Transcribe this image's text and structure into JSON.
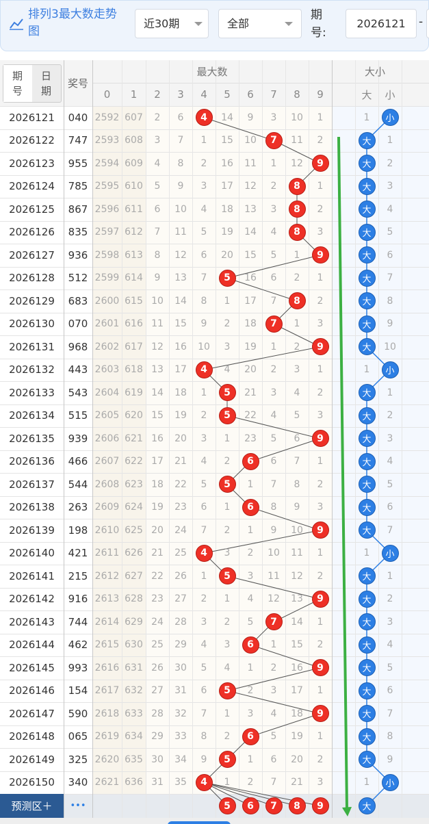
{
  "header": {
    "title": "排列3最大数走势图",
    "period_filter": "近30期",
    "type_filter": "全部",
    "issue_label": "期号:",
    "issue_from": "2026121",
    "separator": "-"
  },
  "table_header": {
    "mode_options": [
      "期号",
      "日期"
    ],
    "number": "奖号",
    "max_group": "最大数",
    "digits": [
      0,
      1,
      2,
      3,
      4,
      5,
      6,
      7,
      8,
      9
    ],
    "size_group": "大小",
    "size_cols": [
      "大",
      "小"
    ]
  },
  "rows": [
    {
      "issue": "2026121",
      "number": "040",
      "cells": [
        2592,
        607,
        2,
        6,
        4,
        14,
        9,
        3,
        10,
        1
      ],
      "size": [
        1,
        "小"
      ]
    },
    {
      "issue": "2026122",
      "number": "747",
      "cells": [
        2593,
        608,
        3,
        7,
        1,
        15,
        10,
        7,
        11,
        2
      ],
      "size": [
        "大",
        1
      ]
    },
    {
      "issue": "2026123",
      "number": "955",
      "cells": [
        2594,
        609,
        4,
        8,
        2,
        16,
        11,
        1,
        12,
        9
      ],
      "size": [
        "大",
        2
      ]
    },
    {
      "issue": "2026124",
      "number": "785",
      "cells": [
        2595,
        610,
        5,
        9,
        3,
        17,
        12,
        2,
        8,
        1
      ],
      "size": [
        "大",
        3
      ]
    },
    {
      "issue": "2026125",
      "number": "867",
      "cells": [
        2596,
        611,
        6,
        10,
        4,
        18,
        13,
        3,
        8,
        2
      ],
      "size": [
        "大",
        4
      ]
    },
    {
      "issue": "2026126",
      "number": "835",
      "cells": [
        2597,
        612,
        7,
        11,
        5,
        19,
        14,
        4,
        8,
        3
      ],
      "size": [
        "大",
        5
      ]
    },
    {
      "issue": "2026127",
      "number": "936",
      "cells": [
        2598,
        613,
        8,
        12,
        6,
        20,
        15,
        5,
        1,
        9
      ],
      "size": [
        "大",
        6
      ]
    },
    {
      "issue": "2026128",
      "number": "512",
      "cells": [
        2599,
        614,
        9,
        13,
        7,
        5,
        16,
        6,
        2,
        1
      ],
      "size": [
        "大",
        7
      ]
    },
    {
      "issue": "2026129",
      "number": "683",
      "cells": [
        2600,
        615,
        10,
        14,
        8,
        1,
        17,
        7,
        8,
        2
      ],
      "size": [
        "大",
        8
      ]
    },
    {
      "issue": "2026130",
      "number": "070",
      "cells": [
        2601,
        616,
        11,
        15,
        9,
        2,
        18,
        7,
        1,
        3
      ],
      "size": [
        "大",
        9
      ]
    },
    {
      "issue": "2026131",
      "number": "968",
      "cells": [
        2602,
        617,
        12,
        16,
        10,
        3,
        19,
        1,
        2,
        9
      ],
      "size": [
        "大",
        10
      ]
    },
    {
      "issue": "2026132",
      "number": "443",
      "cells": [
        2603,
        618,
        13,
        17,
        4,
        4,
        20,
        2,
        3,
        1
      ],
      "size": [
        1,
        "小"
      ]
    },
    {
      "issue": "2026133",
      "number": "543",
      "cells": [
        2604,
        619,
        14,
        18,
        1,
        5,
        21,
        3,
        4,
        2
      ],
      "size": [
        "大",
        1
      ]
    },
    {
      "issue": "2026134",
      "number": "515",
      "cells": [
        2605,
        620,
        15,
        19,
        2,
        5,
        22,
        4,
        5,
        3
      ],
      "size": [
        "大",
        2
      ]
    },
    {
      "issue": "2026135",
      "number": "939",
      "cells": [
        2606,
        621,
        16,
        20,
        3,
        1,
        23,
        5,
        6,
        9
      ],
      "size": [
        "大",
        3
      ]
    },
    {
      "issue": "2026136",
      "number": "466",
      "cells": [
        2607,
        622,
        17,
        21,
        4,
        2,
        6,
        6,
        7,
        1
      ],
      "size": [
        "大",
        4
      ]
    },
    {
      "issue": "2026137",
      "number": "544",
      "cells": [
        2608,
        623,
        18,
        22,
        5,
        5,
        1,
        7,
        8,
        2
      ],
      "size": [
        "大",
        5
      ]
    },
    {
      "issue": "2026138",
      "number": "263",
      "cells": [
        2609,
        624,
        19,
        23,
        6,
        1,
        6,
        8,
        9,
        3
      ],
      "size": [
        "大",
        6
      ]
    },
    {
      "issue": "2026139",
      "number": "198",
      "cells": [
        2610,
        625,
        20,
        24,
        7,
        2,
        1,
        9,
        10,
        9
      ],
      "size": [
        "大",
        7
      ]
    },
    {
      "issue": "2026140",
      "number": "421",
      "cells": [
        2611,
        626,
        21,
        25,
        4,
        3,
        2,
        10,
        11,
        1
      ],
      "size": [
        1,
        "小"
      ]
    },
    {
      "issue": "2026141",
      "number": "215",
      "cells": [
        2612,
        627,
        22,
        26,
        1,
        5,
        3,
        11,
        12,
        2
      ],
      "size": [
        "大",
        1
      ]
    },
    {
      "issue": "2026142",
      "number": "916",
      "cells": [
        2613,
        628,
        23,
        27,
        2,
        1,
        4,
        12,
        13,
        9
      ],
      "size": [
        "大",
        2
      ]
    },
    {
      "issue": "2026143",
      "number": "744",
      "cells": [
        2614,
        629,
        24,
        28,
        3,
        2,
        5,
        7,
        14,
        1
      ],
      "size": [
        "大",
        3
      ]
    },
    {
      "issue": "2026144",
      "number": "462",
      "cells": [
        2615,
        630,
        25,
        29,
        4,
        3,
        6,
        1,
        15,
        2
      ],
      "size": [
        "大",
        4
      ]
    },
    {
      "issue": "2026145",
      "number": "993",
      "cells": [
        2616,
        631,
        26,
        30,
        5,
        4,
        1,
        2,
        16,
        9
      ],
      "size": [
        "大",
        5
      ]
    },
    {
      "issue": "2026146",
      "number": "154",
      "cells": [
        2617,
        632,
        27,
        31,
        6,
        5,
        2,
        3,
        17,
        1
      ],
      "size": [
        "大",
        6
      ]
    },
    {
      "issue": "2026147",
      "number": "590",
      "cells": [
        2618,
        633,
        28,
        32,
        7,
        1,
        3,
        4,
        18,
        9
      ],
      "size": [
        "大",
        7
      ]
    },
    {
      "issue": "2026148",
      "number": "065",
      "cells": [
        2619,
        634,
        29,
        33,
        8,
        2,
        6,
        5,
        19,
        1
      ],
      "size": [
        "大",
        8
      ]
    },
    {
      "issue": "2026149",
      "number": "325",
      "cells": [
        2620,
        635,
        30,
        34,
        9,
        5,
        1,
        6,
        20,
        2
      ],
      "size": [
        "大",
        9
      ]
    },
    {
      "issue": "2026150",
      "number": "340",
      "cells": [
        2621,
        636,
        31,
        35,
        4,
        1,
        2,
        7,
        21,
        3
      ],
      "size": [
        1,
        "小"
      ]
    }
  ],
  "prediction": {
    "label": "预测区＋",
    "more": "•••",
    "balls": [
      "5",
      "6",
      "7",
      "8",
      "9"
    ],
    "size": "大"
  }
}
